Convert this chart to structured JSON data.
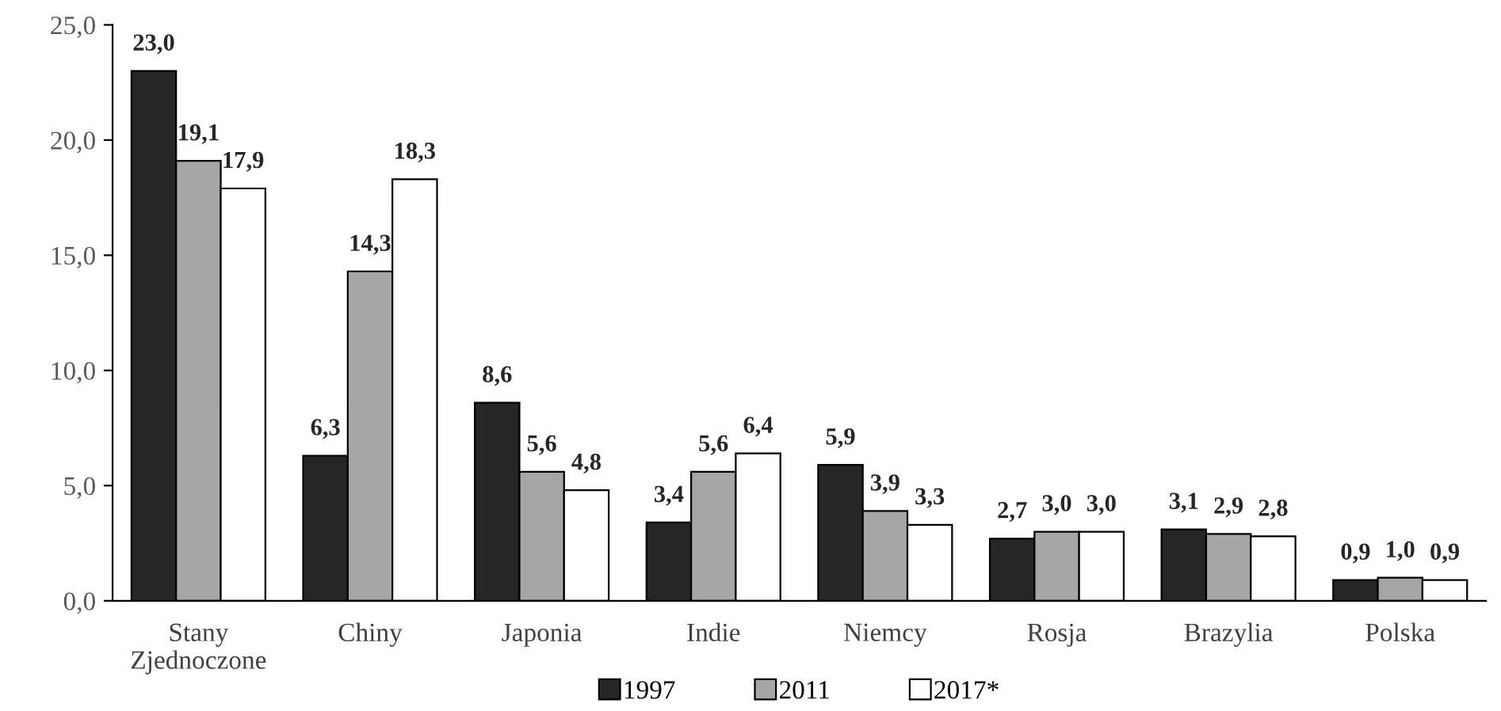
{
  "chart_data": {
    "type": "bar",
    "categories": [
      "Stany\nZjednoczone",
      "Chiny",
      "Japonia",
      "Indie",
      "Niemcy",
      "Rosja",
      "Brazylia",
      "Polska"
    ],
    "series": [
      {
        "name": "1997",
        "color": "#262626",
        "values": [
          23.0,
          6.3,
          8.6,
          3.4,
          5.9,
          2.7,
          3.1,
          0.9
        ],
        "value_labels": [
          "23,0",
          "6,3",
          "8,6",
          "3,4",
          "5,9",
          "2,7",
          "3,1",
          "0,9"
        ]
      },
      {
        "name": "2011",
        "color": "#a6a6a6",
        "values": [
          19.1,
          14.3,
          5.6,
          5.6,
          3.9,
          3.0,
          2.9,
          1.0
        ],
        "value_labels": [
          "19,1",
          "14,3",
          "5,6",
          "5,6",
          "3,9",
          "3,0",
          "2,9",
          "1,0"
        ]
      },
      {
        "name": "2017*",
        "color": "#ffffff",
        "values": [
          17.9,
          18.3,
          4.8,
          6.4,
          3.3,
          3.0,
          2.8,
          0.9
        ],
        "value_labels": [
          "17,9",
          "18,3",
          "4,8",
          "6,4",
          "3,3",
          "3,0",
          "2,8",
          "0,9"
        ]
      }
    ],
    "ylim": [
      0,
      25
    ],
    "yticks": [
      {
        "value": 0,
        "label": "0,0"
      },
      {
        "value": 5,
        "label": "5,0"
      },
      {
        "value": 10,
        "label": "10,0"
      },
      {
        "value": 15,
        "label": "15,0"
      },
      {
        "value": 20,
        "label": "20,0"
      },
      {
        "value": 25,
        "label": "25,0"
      }
    ],
    "grid": false,
    "legend": "bottom"
  }
}
